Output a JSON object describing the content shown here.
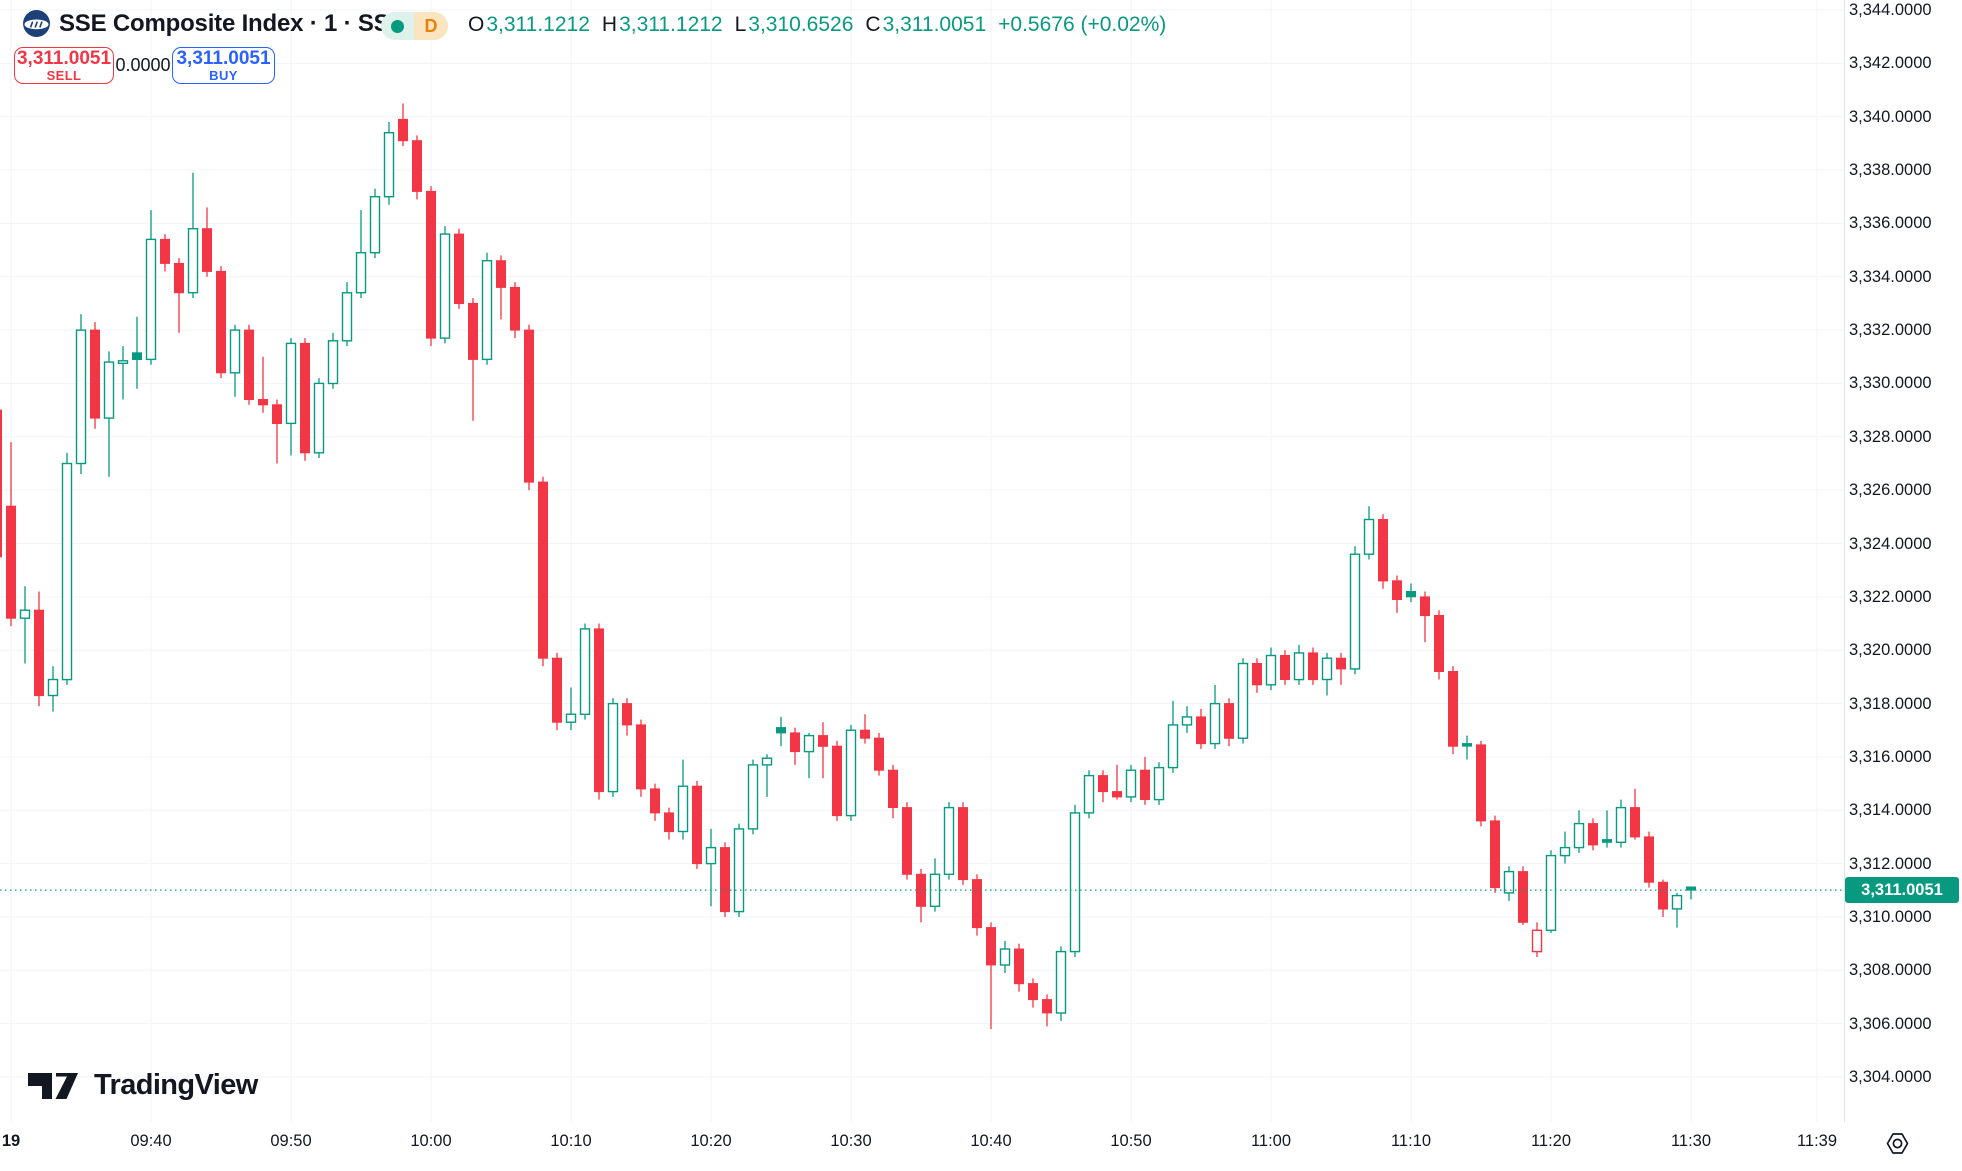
{
  "header": {
    "symbol_title": "SSE Composite Index · 1 · SSE",
    "status": {
      "letter": "D"
    },
    "ohlc_items": [
      {
        "k": "O",
        "v": "3,311.1212"
      },
      {
        "k": "H",
        "v": "3,311.1212"
      },
      {
        "k": "L",
        "v": "3,310.6526"
      },
      {
        "k": "C",
        "v": "3,311.0051"
      }
    ],
    "change": "+0.5676 (+0.02%)"
  },
  "trade_panel": {
    "sell_price": "3,311.0051",
    "sell_label": "SELL",
    "spread": "0.0000",
    "buy_price": "3,311.0051",
    "buy_label": "BUY"
  },
  "watermark": {
    "brand": "TradingView"
  },
  "price_scale": {
    "current": {
      "price": 3311.0051,
      "label": "3,311.0051"
    },
    "ticks": [
      {
        "label": "3,344.0000",
        "price": 3344
      },
      {
        "label": "3,342.0000",
        "price": 3342
      },
      {
        "label": "3,340.0000",
        "price": 3340
      },
      {
        "label": "3,338.0000",
        "price": 3338
      },
      {
        "label": "3,336.0000",
        "price": 3336
      },
      {
        "label": "3,334.0000",
        "price": 3334
      },
      {
        "label": "3,332.0000",
        "price": 3332
      },
      {
        "label": "3,330.0000",
        "price": 3330
      },
      {
        "label": "3,328.0000",
        "price": 3328
      },
      {
        "label": "3,326.0000",
        "price": 3326
      },
      {
        "label": "3,324.0000",
        "price": 3324
      },
      {
        "label": "3,322.0000",
        "price": 3322
      },
      {
        "label": "3,320.0000",
        "price": 3320
      },
      {
        "label": "3,318.0000",
        "price": 3318
      },
      {
        "label": "3,316.0000",
        "price": 3316
      },
      {
        "label": "3,314.0000",
        "price": 3314
      },
      {
        "label": "3,312.0000",
        "price": 3312
      },
      {
        "label": "3,310.0000",
        "price": 3310
      },
      {
        "label": "3,308.0000",
        "price": 3308
      },
      {
        "label": "3,306.0000",
        "price": 3306
      },
      {
        "label": "3,304.0000",
        "price": 3304
      }
    ]
  },
  "time_scale": {
    "ticks": [
      {
        "label": "19",
        "idx": 1,
        "bold": true
      },
      {
        "label": "09:40",
        "idx": 11
      },
      {
        "label": "09:50",
        "idx": 21
      },
      {
        "label": "10:00",
        "idx": 31
      },
      {
        "label": "10:10",
        "idx": 41
      },
      {
        "label": "10:20",
        "idx": 51
      },
      {
        "label": "10:30",
        "idx": 61
      },
      {
        "label": "10:40",
        "idx": 71
      },
      {
        "label": "10:50",
        "idx": 81
      },
      {
        "label": "11:00",
        "idx": 91
      },
      {
        "label": "11:10",
        "idx": 101
      },
      {
        "label": "11:20",
        "idx": 111
      },
      {
        "label": "11:30",
        "idx": 121
      },
      {
        "label": "11:39",
        "idx": 130
      }
    ]
  },
  "colors": {
    "up": "#089981",
    "down": "#F23645",
    "buy_blue": "#2962FF",
    "text": "#131722",
    "grid": "#F0F3FA",
    "separator": "#E0E3EB",
    "pill_left_bg": "#DCF2EA",
    "pill_right_bg": "#FBE5C0",
    "pill_d_text": "#E8820C",
    "logo_navy": "#1C4077"
  },
  "chart_data": {
    "type": "candlestick",
    "title": "SSE Composite Index",
    "exchange": "SSE",
    "interval_minutes": 1,
    "ylabel": "price",
    "price_axis_range": [
      3304,
      3344
    ],
    "price_axis_step": 2,
    "grid": true,
    "last_close": 3311.0051,
    "change_text": "+0.5676 (+0.02%)",
    "columns": [
      "time",
      "open",
      "high",
      "low",
      "close"
    ],
    "candles": [
      [
        "09:29",
        3329.0,
        3330.6,
        3323.2,
        3323.5
      ],
      [
        "09:30",
        3325.4,
        3327.8,
        3320.9,
        3321.2
      ],
      [
        "09:31",
        3321.2,
        3322.4,
        3319.5,
        3321.5
      ],
      [
        "09:32",
        3321.5,
        3322.2,
        3317.9,
        3318.3
      ],
      [
        "09:33",
        3318.3,
        3319.4,
        3317.7,
        3318.9
      ],
      [
        "09:34",
        3318.9,
        3327.4,
        3318.7,
        3327.0
      ],
      [
        "09:35",
        3327.0,
        3332.6,
        3326.6,
        3332.0
      ],
      [
        "09:36",
        3332.0,
        3332.3,
        3328.3,
        3328.7
      ],
      [
        "09:37",
        3328.7,
        3331.2,
        3326.5,
        3330.8
      ],
      [
        "09:38",
        3330.8,
        3331.4,
        3329.4,
        3330.85
      ],
      [
        "09:39",
        3331.15,
        3332.5,
        3329.8,
        3330.9
      ],
      [
        "09:40",
        3330.9,
        3336.5,
        3330.7,
        3335.4
      ],
      [
        "09:41",
        3335.4,
        3335.6,
        3334.2,
        3334.5
      ],
      [
        "09:42",
        3334.5,
        3334.7,
        3331.9,
        3333.4
      ],
      [
        "09:43",
        3333.4,
        3337.9,
        3333.2,
        3335.8
      ],
      [
        "09:44",
        3335.8,
        3336.6,
        3334.0,
        3334.2
      ],
      [
        "09:45",
        3334.2,
        3334.4,
        3330.2,
        3330.4
      ],
      [
        "09:46",
        3330.4,
        3332.2,
        3329.5,
        3332.0
      ],
      [
        "09:47",
        3332.0,
        3332.2,
        3329.2,
        3329.4
      ],
      [
        "09:48",
        3329.4,
        3331.0,
        3328.9,
        3329.2
      ],
      [
        "09:49",
        3329.2,
        3329.4,
        3327.0,
        3328.5
      ],
      [
        "09:50",
        3328.5,
        3331.7,
        3327.3,
        3331.5
      ],
      [
        "09:51",
        3331.5,
        3331.7,
        3327.1,
        3327.4
      ],
      [
        "09:52",
        3327.4,
        3330.2,
        3327.2,
        3330.0
      ],
      [
        "09:53",
        3330.0,
        3331.9,
        3329.8,
        3331.6
      ],
      [
        "09:54",
        3331.6,
        3333.8,
        3331.4,
        3333.4
      ],
      [
        "09:55",
        3333.4,
        3336.5,
        3333.2,
        3334.9
      ],
      [
        "09:56",
        3334.9,
        3337.3,
        3334.7,
        3337.0
      ],
      [
        "09:57",
        3337.0,
        3339.8,
        3336.7,
        3339.4
      ],
      [
        "09:58",
        3339.9,
        3340.5,
        3338.9,
        3339.1
      ],
      [
        "09:59",
        3339.1,
        3339.3,
        3336.9,
        3337.2
      ],
      [
        "10:00",
        3337.2,
        3337.4,
        3331.4,
        3331.7
      ],
      [
        "10:01",
        3331.7,
        3335.9,
        3331.5,
        3335.6
      ],
      [
        "10:02",
        3335.6,
        3335.8,
        3332.8,
        3333.0
      ],
      [
        "10:03",
        3333.0,
        3333.2,
        3328.6,
        3330.9
      ],
      [
        "10:04",
        3330.9,
        3334.9,
        3330.7,
        3334.6
      ],
      [
        "10:05",
        3334.6,
        3334.8,
        3332.4,
        3333.6
      ],
      [
        "10:06",
        3333.6,
        3333.8,
        3331.7,
        3332.0
      ],
      [
        "10:07",
        3332.0,
        3332.2,
        3326.0,
        3326.3
      ],
      [
        "10:08",
        3326.3,
        3326.5,
        3319.4,
        3319.7
      ],
      [
        "10:09",
        3319.7,
        3319.9,
        3317.0,
        3317.3
      ],
      [
        "10:10",
        3317.3,
        3318.6,
        3317.0,
        3317.6
      ],
      [
        "10:11",
        3317.6,
        3321.0,
        3317.4,
        3320.8
      ],
      [
        "10:12",
        3320.8,
        3321.0,
        3314.4,
        3314.7
      ],
      [
        "10:13",
        3314.7,
        3318.2,
        3314.5,
        3318.0
      ],
      [
        "10:14",
        3318.0,
        3318.2,
        3316.8,
        3317.2
      ],
      [
        "10:15",
        3317.2,
        3317.4,
        3314.5,
        3314.8
      ],
      [
        "10:16",
        3314.8,
        3315.0,
        3313.6,
        3313.9
      ],
      [
        "10:17",
        3313.9,
        3314.1,
        3312.9,
        3313.2
      ],
      [
        "10:18",
        3313.2,
        3315.9,
        3312.9,
        3314.9
      ],
      [
        "10:19",
        3314.9,
        3315.1,
        3311.8,
        3312.0
      ],
      [
        "10:20",
        3312.0,
        3313.3,
        3310.4,
        3312.6
      ],
      [
        "10:21",
        3312.6,
        3312.8,
        3310.0,
        3310.2
      ],
      [
        "10:22",
        3310.2,
        3313.5,
        3310.0,
        3313.3
      ],
      [
        "10:23",
        3313.3,
        3315.9,
        3313.1,
        3315.7
      ],
      [
        "10:24",
        3315.7,
        3316.1,
        3314.5,
        3315.95
      ],
      [
        "10:25",
        3317.1,
        3317.5,
        3316.4,
        3316.9
      ],
      [
        "10:26",
        3316.9,
        3317.1,
        3315.7,
        3316.2
      ],
      [
        "10:27",
        3316.2,
        3316.9,
        3315.2,
        3316.8
      ],
      [
        "10:28",
        3316.8,
        3317.3,
        3315.2,
        3316.4
      ],
      [
        "10:29",
        3316.4,
        3316.6,
        3313.6,
        3313.8
      ],
      [
        "10:30",
        3313.8,
        3317.2,
        3313.6,
        3317.0
      ],
      [
        "10:31",
        3317.0,
        3317.6,
        3316.5,
        3316.7
      ],
      [
        "10:32",
        3316.7,
        3316.9,
        3315.3,
        3315.5
      ],
      [
        "10:33",
        3315.5,
        3315.7,
        3313.7,
        3314.1
      ],
      [
        "10:34",
        3314.1,
        3314.3,
        3311.4,
        3311.6
      ],
      [
        "10:35",
        3311.6,
        3311.8,
        3309.8,
        3310.4
      ],
      [
        "10:36",
        3310.4,
        3312.2,
        3310.2,
        3311.6
      ],
      [
        "10:37",
        3311.6,
        3314.3,
        3311.4,
        3314.1
      ],
      [
        "10:38",
        3314.1,
        3314.3,
        3311.2,
        3311.4
      ],
      [
        "10:39",
        3311.4,
        3311.6,
        3309.3,
        3309.6
      ],
      [
        "10:40",
        3309.6,
        3309.8,
        3305.8,
        3308.2
      ],
      [
        "10:41",
        3308.2,
        3309.1,
        3307.9,
        3308.8
      ],
      [
        "10:42",
        3308.8,
        3309.0,
        3307.2,
        3307.5
      ],
      [
        "10:43",
        3307.5,
        3307.7,
        3306.6,
        3306.9
      ],
      [
        "10:44",
        3306.9,
        3307.1,
        3305.9,
        3306.4
      ],
      [
        "10:45",
        3306.4,
        3308.9,
        3306.1,
        3308.7
      ],
      [
        "10:46",
        3308.7,
        3314.2,
        3308.5,
        3313.9
      ],
      [
        "10:47",
        3313.9,
        3315.5,
        3313.7,
        3315.3
      ],
      [
        "10:48",
        3315.3,
        3315.5,
        3314.3,
        3314.7
      ],
      [
        "10:49",
        3314.7,
        3315.7,
        3314.4,
        3314.5
      ],
      [
        "10:50",
        3314.5,
        3315.7,
        3314.3,
        3315.5
      ],
      [
        "10:51",
        3315.5,
        3316.0,
        3314.2,
        3314.4
      ],
      [
        "10:52",
        3314.4,
        3315.8,
        3314.2,
        3315.6
      ],
      [
        "10:53",
        3315.6,
        3318.1,
        3315.4,
        3317.2
      ],
      [
        "10:54",
        3317.2,
        3317.9,
        3316.9,
        3317.5
      ],
      [
        "10:55",
        3317.5,
        3317.8,
        3316.3,
        3316.5
      ],
      [
        "10:56",
        3316.5,
        3318.7,
        3316.3,
        3318.0
      ],
      [
        "10:57",
        3318.0,
        3318.2,
        3316.4,
        3316.7
      ],
      [
        "10:58",
        3316.7,
        3319.7,
        3316.5,
        3319.5
      ],
      [
        "10:59",
        3319.5,
        3319.7,
        3318.4,
        3318.7
      ],
      [
        "11:00",
        3318.7,
        3320.1,
        3318.5,
        3319.8
      ],
      [
        "11:01",
        3319.8,
        3320.0,
        3318.7,
        3318.9
      ],
      [
        "11:02",
        3318.9,
        3320.2,
        3318.7,
        3319.9
      ],
      [
        "11:03",
        3319.9,
        3320.1,
        3318.7,
        3318.9
      ],
      [
        "11:04",
        3318.9,
        3319.9,
        3318.3,
        3319.7
      ],
      [
        "11:05",
        3319.7,
        3319.9,
        3318.7,
        3319.3
      ],
      [
        "11:06",
        3319.3,
        3323.9,
        3319.1,
        3323.6
      ],
      [
        "11:07",
        3323.6,
        3325.4,
        3323.4,
        3324.9
      ],
      [
        "11:08",
        3324.9,
        3325.1,
        3322.3,
        3322.6
      ],
      [
        "11:09",
        3322.6,
        3322.8,
        3321.4,
        3321.9
      ],
      [
        "11:10",
        3322.2,
        3322.5,
        3321.8,
        3322.0
      ],
      [
        "11:11",
        3322.0,
        3322.2,
        3320.3,
        3321.3
      ],
      [
        "11:12",
        3321.3,
        3321.5,
        3318.9,
        3319.2
      ],
      [
        "11:13",
        3319.2,
        3319.4,
        3316.1,
        3316.4
      ],
      [
        "11:14",
        3316.5,
        3316.8,
        3315.9,
        3316.45
      ],
      [
        "11:15",
        3316.45,
        3316.6,
        3313.4,
        3313.6
      ],
      [
        "11:16",
        3313.6,
        3313.8,
        3310.9,
        3311.1
      ],
      [
        "11:17",
        3310.9,
        3311.9,
        3310.6,
        3311.7
      ],
      [
        "11:18",
        3311.7,
        3311.9,
        3309.7,
        3309.8
      ],
      [
        "11:19",
        3308.7,
        3309.8,
        3308.5,
        3309.5
      ],
      [
        "11:20",
        3309.5,
        3312.5,
        3309.4,
        3312.3
      ],
      [
        "11:21",
        3312.3,
        3313.2,
        3312.0,
        3312.6
      ],
      [
        "11:22",
        3312.6,
        3314.0,
        3312.4,
        3313.5
      ],
      [
        "11:23",
        3313.5,
        3313.7,
        3312.5,
        3312.7
      ],
      [
        "11:24",
        3312.9,
        3314.0,
        3312.6,
        3312.8
      ],
      [
        "11:25",
        3312.8,
        3314.4,
        3312.6,
        3314.1
      ],
      [
        "11:26",
        3314.1,
        3314.8,
        3312.9,
        3313.0
      ],
      [
        "11:27",
        3313.0,
        3313.2,
        3311.1,
        3311.3
      ],
      [
        "11:28",
        3311.3,
        3311.4,
        3310.0,
        3310.3
      ],
      [
        "11:29",
        3310.3,
        3310.9,
        3309.6,
        3310.8
      ],
      [
        "11:30",
        3311.1212,
        3311.1212,
        3310.6526,
        3311.0051
      ]
    ]
  }
}
